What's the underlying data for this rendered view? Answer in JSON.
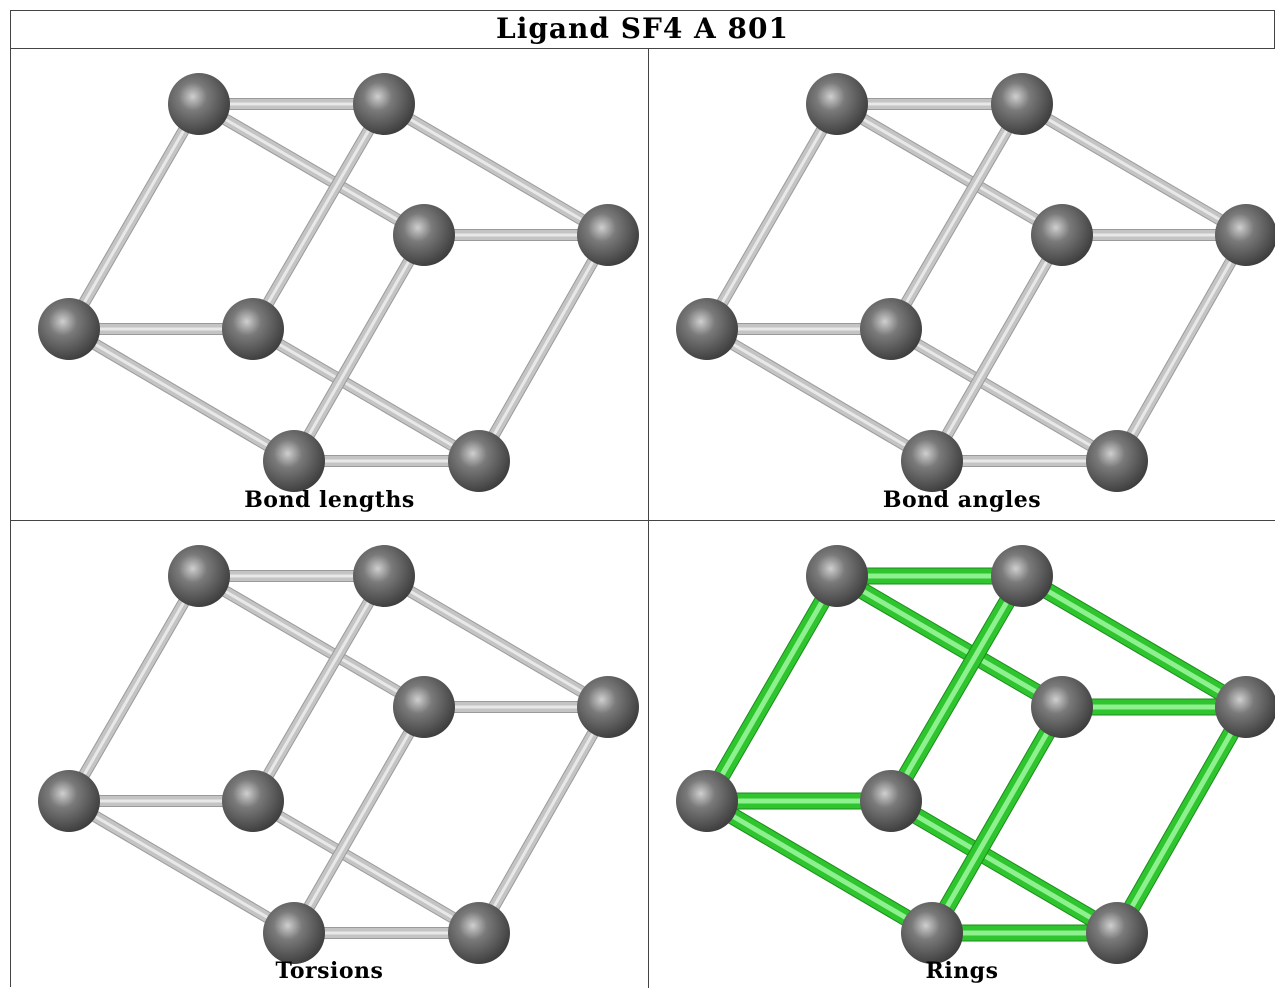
{
  "title": "Ligand SF4 A 801",
  "panels": [
    {
      "caption": "Bond lengths",
      "bond_style": "gray"
    },
    {
      "caption": "Bond angles",
      "bond_style": "gray"
    },
    {
      "caption": "Torsions",
      "bond_style": "gray"
    },
    {
      "caption": "Rings",
      "bond_style": "green"
    }
  ],
  "colors": {
    "atom": "#7a7a7a",
    "bond_gray": "#c4c4c4",
    "bond_green": "#2fc52f"
  }
}
